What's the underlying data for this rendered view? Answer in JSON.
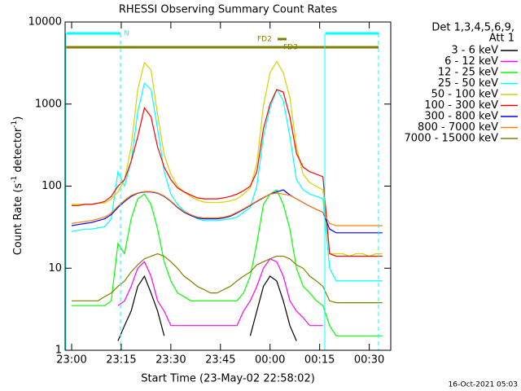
{
  "chart_data": {
    "type": "line",
    "title": "RHESSI Observing Summary Count Rates",
    "x_label": "Start Time (23-May-02 22:58:02)",
    "y_label": [
      "Count Rate (s",
      "-1",
      " detector",
      "-1",
      ")"
    ],
    "log_y": true,
    "legend_header": [
      "Det 1,3,4,5,6,9,",
      "Att 1"
    ],
    "annotations": [
      "N",
      "FD2",
      "FD3"
    ],
    "footer": "16-Oct-2021 05:03",
    "xlim": [
      -1.97,
      96.5
    ],
    "xticks": [
      {
        "value": 0,
        "label": "23:00"
      },
      {
        "value": 15,
        "label": "23:15"
      },
      {
        "value": 30,
        "label": "23:30"
      },
      {
        "value": 45,
        "label": "23:45"
      },
      {
        "value": 60,
        "label": "00:00"
      },
      {
        "value": 75,
        "label": "00:15"
      },
      {
        "value": 90,
        "label": "00:30"
      }
    ],
    "ylim": [
      1,
      10000
    ],
    "yticks": [
      1,
      10,
      100,
      1000,
      10000
    ],
    "x": [
      0,
      2,
      4,
      6,
      8,
      10,
      12,
      14,
      16,
      18,
      20,
      22,
      24,
      26,
      28,
      30,
      32,
      34,
      36,
      38,
      40,
      42,
      44,
      46,
      48,
      50,
      52,
      54,
      56,
      58,
      60,
      62,
      64,
      66,
      68,
      70,
      72,
      74,
      76,
      78,
      80,
      82,
      84,
      86,
      88,
      90,
      92,
      94
    ],
    "series": [
      {
        "name": "3 - 6 keV",
        "color": "#000000",
        "values": [
          null,
          null,
          null,
          null,
          null,
          null,
          null,
          1.3,
          2,
          3,
          6,
          8,
          5,
          3,
          1.5,
          null,
          null,
          null,
          null,
          null,
          null,
          null,
          null,
          null,
          null,
          null,
          null,
          1.5,
          3,
          6,
          8,
          7,
          4,
          2,
          1.3,
          null,
          null,
          null,
          null,
          null,
          null,
          null,
          null,
          null,
          null,
          null,
          null,
          null
        ]
      },
      {
        "name": "6 - 12 keV",
        "color": "#ff00ff",
        "values": [
          null,
          null,
          null,
          null,
          null,
          null,
          null,
          3.5,
          4,
          6,
          10,
          12,
          8,
          4,
          3,
          2,
          2,
          2,
          2,
          2,
          2,
          2,
          2,
          2,
          2,
          2,
          3,
          4,
          6,
          10,
          13,
          12,
          8,
          4,
          3,
          2.5,
          2,
          2,
          2,
          null,
          null,
          null,
          null,
          null,
          null,
          null,
          null,
          null
        ]
      },
      {
        "name": "12 - 25 keV",
        "color": "#00ff00",
        "values": [
          3.5,
          3.5,
          3.5,
          3.5,
          3.5,
          3.5,
          4,
          20,
          15,
          40,
          70,
          80,
          60,
          30,
          12,
          7,
          5,
          4.5,
          4,
          4,
          4,
          4,
          4,
          4,
          4,
          4,
          5,
          8,
          20,
          60,
          80,
          90,
          60,
          30,
          10,
          6,
          5,
          4,
          3.5,
          2,
          1.5,
          1.5,
          1.5,
          1.5,
          1.5,
          1.5,
          1.5,
          1.5
        ]
      },
      {
        "name": "25 - 50 keV",
        "color": "#00ffff",
        "values": [
          28,
          29,
          30,
          30,
          31,
          32,
          40,
          150,
          100,
          200,
          800,
          1800,
          1500,
          500,
          150,
          80,
          60,
          50,
          45,
          40,
          38,
          38,
          38,
          39,
          40,
          42,
          48,
          55,
          100,
          400,
          900,
          1500,
          1100,
          400,
          120,
          90,
          80,
          75,
          70,
          10,
          7,
          7,
          7,
          7,
          7,
          7,
          7,
          7
        ]
      },
      {
        "name": "50 - 100 keV",
        "color": "#d4d400",
        "values": [
          60,
          60,
          60,
          60,
          62,
          62,
          70,
          85,
          120,
          300,
          1500,
          3200,
          2600,
          750,
          240,
          140,
          100,
          85,
          75,
          68,
          64,
          63,
          63,
          64,
          66,
          70,
          80,
          95,
          190,
          950,
          2400,
          3300,
          2400,
          1200,
          300,
          140,
          110,
          100,
          90,
          15,
          15,
          15,
          14,
          15,
          15,
          14,
          15,
          15
        ]
      },
      {
        "name": "100 - 300 keV",
        "color": "#ff0000",
        "values": [
          58,
          58,
          60,
          60,
          62,
          65,
          75,
          100,
          120,
          200,
          400,
          900,
          700,
          300,
          170,
          120,
          95,
          85,
          78,
          72,
          70,
          70,
          70,
          72,
          75,
          80,
          88,
          100,
          150,
          500,
          1000,
          1500,
          1400,
          700,
          250,
          170,
          150,
          140,
          130,
          15,
          14,
          14,
          14,
          14,
          14,
          14,
          14,
          14
        ]
      },
      {
        "name": "300 - 800 keV",
        "color": "#0000ff",
        "values": [
          33,
          34,
          35,
          36,
          38,
          40,
          45,
          55,
          65,
          75,
          82,
          85,
          85,
          82,
          75,
          65,
          55,
          48,
          44,
          41,
          40,
          40,
          40,
          41,
          43,
          47,
          52,
          58,
          65,
          72,
          80,
          85,
          90,
          78,
          70,
          63,
          57,
          52,
          48,
          30,
          27,
          27,
          27,
          27,
          27,
          27,
          27,
          27
        ]
      },
      {
        "name": "800 - 7000 keV",
        "color": "#ff8000",
        "values": [
          35,
          36,
          37,
          38,
          40,
          42,
          47,
          57,
          67,
          77,
          83,
          86,
          86,
          83,
          76,
          66,
          56,
          49,
          45,
          42,
          41,
          41,
          41,
          42,
          44,
          48,
          53,
          59,
          66,
          73,
          80,
          82,
          80,
          77,
          70,
          63,
          57,
          52,
          48,
          35,
          33,
          33,
          33,
          33,
          33,
          33,
          33,
          33
        ]
      },
      {
        "name": "7000 - 15000 keV",
        "color": "#808000",
        "values": [
          4,
          4,
          4,
          4,
          4,
          4.5,
          5,
          6,
          7,
          9,
          11,
          13,
          14,
          15,
          14,
          12,
          10,
          8,
          7,
          6,
          5.5,
          5,
          5,
          5.5,
          6,
          7,
          8,
          9,
          11,
          12,
          13,
          14,
          14,
          13,
          11,
          10,
          8,
          7,
          6,
          4,
          3.8,
          3.8,
          3.8,
          3.8,
          3.8,
          3.8,
          3.8,
          3.8
        ]
      }
    ]
  }
}
